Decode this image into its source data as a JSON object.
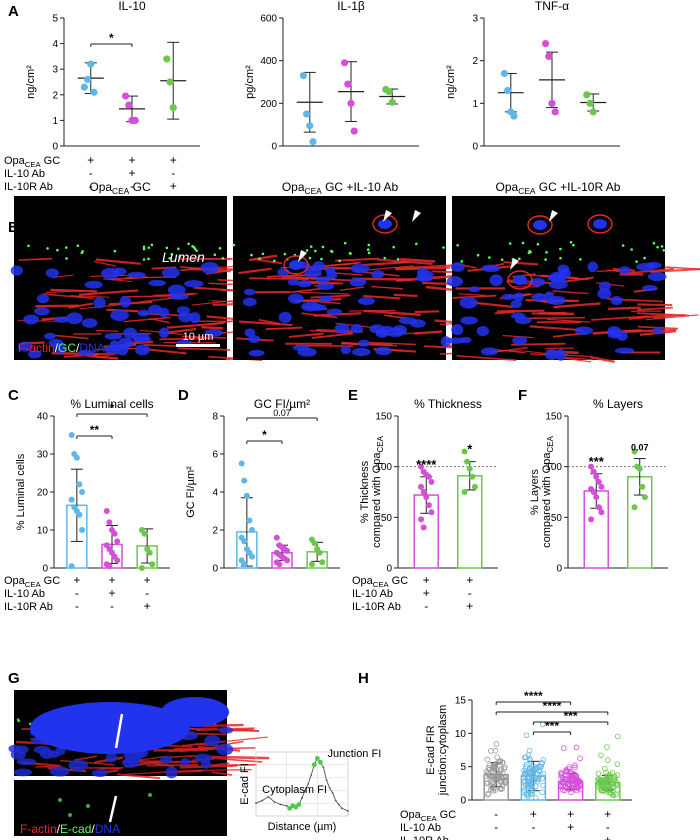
{
  "colors": {
    "blue": "#5fb6e8",
    "magenta": "#d64fd8",
    "green": "#6cc84a",
    "gray": "#9a9a9a",
    "red": "#e8282a",
    "dna": "#2233ee"
  },
  "panel_letters": [
    "A",
    "B",
    "C",
    "D",
    "E",
    "F",
    "G",
    "H"
  ],
  "row_labels": {
    "opa_main": "Opa",
    "opa_sub": "CEA",
    "opa_tail": " GC",
    "il10": "IL-10 Ab",
    "il10r": "IL-10R Ab"
  },
  "treatments": {
    "plus": "+",
    "minus": "-"
  },
  "panel_b": {
    "titles": [
      {
        "main": "Opa",
        "sub": "CEA",
        "tail": " GC"
      },
      {
        "main": "Opa",
        "sub": "CEA",
        "tail": " GC +IL-10 Ab"
      },
      {
        "main": "Opa",
        "sub": "CEA",
        "tail": " GC +IL-10R Ab"
      }
    ],
    "lumen": "Lumen",
    "legend": [
      "F-actin",
      "/",
      "GC",
      "/",
      "DNA"
    ],
    "scalebar": "10 µm"
  },
  "panel_g": {
    "legend": [
      "F-actin",
      "/",
      "E-cad",
      "/",
      "DNA"
    ]
  },
  "chart_data": [
    {
      "id": "A1",
      "type": "scatter",
      "title": "IL-10",
      "ylabel": "ng/cm²",
      "ylim": [
        0,
        5
      ],
      "yticks": [
        0,
        1,
        2,
        3,
        4,
        5
      ],
      "groups": [
        "Opa GC",
        "+IL-10 Ab",
        "+IL-10R Ab"
      ],
      "series": [
        {
          "values": [
            2.3,
            2.6,
            3.2,
            2.1
          ],
          "mean": 2.65,
          "sd": 0.6
        },
        {
          "values": [
            1.95,
            1.6,
            1.0,
            1.0
          ],
          "mean": 1.45,
          "sd": 0.5
        },
        {
          "values": [
            3.4,
            2.5,
            1.5
          ],
          "mean": 2.55,
          "sd": 1.5
        }
      ],
      "annotations": [
        {
          "label": "*",
          "from": 0,
          "to": 1
        }
      ]
    },
    {
      "id": "A2",
      "type": "scatter",
      "title": "IL-1β",
      "ylabel": "pg/cm²",
      "ylim": [
        0,
        600
      ],
      "yticks": [
        0,
        200,
        400,
        600
      ],
      "series": [
        {
          "values": [
            330,
            150,
            95,
            20
          ],
          "mean": 205,
          "sd": 140
        },
        {
          "values": [
            390,
            290,
            200,
            70
          ],
          "mean": 255,
          "sd": 140
        },
        {
          "values": [
            265,
            255,
            205
          ],
          "mean": 232,
          "sd": 35
        }
      ]
    },
    {
      "id": "A3",
      "type": "scatter",
      "title": "TNF-α",
      "ylabel": "ng/cm²",
      "ylim": [
        0,
        3
      ],
      "yticks": [
        0,
        1,
        2,
        3
      ],
      "series": [
        {
          "values": [
            1.7,
            1.3,
            0.8,
            0.7
          ],
          "mean": 1.25,
          "sd": 0.45
        },
        {
          "values": [
            2.4,
            2.1,
            1.0,
            0.8
          ],
          "mean": 1.55,
          "sd": 0.65
        },
        {
          "values": [
            1.2,
            1.0,
            0.8
          ],
          "mean": 1.02,
          "sd": 0.2
        }
      ]
    },
    {
      "id": "C",
      "type": "bar",
      "title": "% Luminal cells",
      "ylabel": "% Luminal cells",
      "ylim": [
        0,
        40
      ],
      "yticks": [
        0,
        10,
        20,
        30,
        40
      ],
      "series": [
        {
          "values": [
            35,
            30,
            29,
            22,
            20,
            18,
            16,
            15,
            14,
            10,
            0.5
          ],
          "mean": 16.5,
          "sd": 9.5
        },
        {
          "values": [
            15,
            12,
            10,
            9,
            7,
            6,
            5,
            4,
            3,
            2,
            1,
            0.5
          ],
          "mean": 6.2,
          "sd": 5
        },
        {
          "values": [
            10,
            9,
            5,
            4,
            1,
            0
          ],
          "mean": 5.8,
          "sd": 4.5
        }
      ],
      "annotations": [
        {
          "label": "**",
          "from": 0,
          "to": 1
        },
        {
          "label": "*",
          "from": 0,
          "to": 2
        }
      ]
    },
    {
      "id": "D",
      "type": "bar",
      "title": "GC FI/µm²",
      "ylabel": "GC FI/µm²",
      "ylim": [
        0,
        8
      ],
      "yticks": [
        0,
        2,
        4,
        6,
        8
      ],
      "series": [
        {
          "values": [
            5.5,
            4.6,
            3.8,
            2.5,
            2.0,
            1.6,
            1.4,
            1.0,
            0.8,
            0.6,
            0.4,
            0.2
          ],
          "mean": 1.9,
          "sd": 1.8
        },
        {
          "values": [
            1.6,
            1.2,
            1.1,
            1.0,
            0.9,
            0.8,
            0.7,
            0.6,
            0.5,
            0.4,
            0.3,
            0.2
          ],
          "mean": 0.8,
          "sd": 0.4
        },
        {
          "values": [
            1.5,
            1.3,
            1.0,
            0.8,
            0.3,
            0.2
          ],
          "mean": 0.85,
          "sd": 0.5
        }
      ],
      "annotations": [
        {
          "label": "*",
          "from": 0,
          "to": 1
        },
        {
          "label": "0.07",
          "from": 0,
          "to": 2
        }
      ]
    },
    {
      "id": "E",
      "type": "bar",
      "title": "% Thickness",
      "ylabel": "% Thickness",
      "ylabel2": "compared with Opa",
      "ylabel2_sub": "CEA",
      "ylim": [
        0,
        150
      ],
      "yticks": [
        0,
        50,
        100,
        150
      ],
      "refline": 100,
      "series": [
        {
          "values": [
            100,
            95,
            92,
            90,
            85,
            80,
            75,
            70,
            62,
            55,
            48,
            40
          ],
          "mean": 72,
          "sd": 18,
          "sig": "****"
        },
        {
          "values": [
            115,
            105,
            98,
            90,
            80,
            75
          ],
          "mean": 91,
          "sd": 14,
          "sig": "*"
        }
      ]
    },
    {
      "id": "F",
      "type": "bar",
      "title": "% Layers",
      "ylabel": "% Layers",
      "ylabel2": "compared with Opa",
      "ylabel2_sub": "CEA",
      "ylim": [
        0,
        150
      ],
      "yticks": [
        0,
        50,
        100,
        150
      ],
      "refline": 100,
      "series": [
        {
          "values": [
            100,
            95,
            90,
            85,
            80,
            78,
            75,
            70,
            60,
            55,
            48
          ],
          "mean": 76,
          "sd": 17,
          "sig": "***"
        },
        {
          "values": [
            115,
            100,
            98,
            80,
            70,
            60
          ],
          "mean": 90,
          "sd": 18,
          "sig": "0.07"
        }
      ]
    },
    {
      "id": "G",
      "type": "line",
      "ylabel": "E-cad FI",
      "xlabel": "Distance (µm)",
      "x": [
        0.0,
        0.1,
        0.2,
        0.3,
        0.4,
        0.5,
        0.55,
        0.6,
        0.65,
        0.7,
        0.75,
        0.8,
        0.85,
        0.9,
        0.95,
        1.0,
        1.05,
        1.1,
        1.15,
        1.2,
        1.25,
        1.3,
        1.35,
        1.4,
        1.5
      ],
      "y": [
        10,
        12,
        15,
        11,
        9,
        8,
        6,
        8,
        7,
        9,
        14,
        20,
        25,
        32,
        40,
        45,
        42,
        38,
        28,
        22,
        18,
        12,
        9,
        6,
        4
      ],
      "green_points": [
        [
          0.55,
          6
        ],
        [
          0.6,
          8
        ],
        [
          0.65,
          7
        ],
        [
          0.7,
          9
        ],
        [
          0.95,
          40
        ],
        [
          1.05,
          42
        ],
        [
          1.0,
          45
        ]
      ],
      "annotations": [
        "Junction FI",
        "Cytoplasm FI"
      ]
    },
    {
      "id": "H",
      "type": "bar",
      "ylabel": "E-cad FIR",
      "ylabel2": "junction:cytoplasm",
      "ylim": [
        0,
        15
      ],
      "yticks": [
        0,
        5,
        10,
        15
      ],
      "series": [
        {
          "mean": 3.8,
          "sd": 1.8,
          "n": 80
        },
        {
          "mean": 3.6,
          "sd": 2.2,
          "n": 90
        },
        {
          "mean": 2.8,
          "sd": 1.2,
          "n": 85
        },
        {
          "mean": 2.6,
          "sd": 1.1,
          "n": 80
        }
      ],
      "annotations": [
        {
          "label": "****",
          "from": 0,
          "to": 3
        },
        {
          "label": "****",
          "from": 0,
          "to": 2
        },
        {
          "label": "***",
          "from": 1,
          "to": 3
        },
        {
          "label": "***",
          "from": 1,
          "to": 2
        }
      ]
    }
  ]
}
